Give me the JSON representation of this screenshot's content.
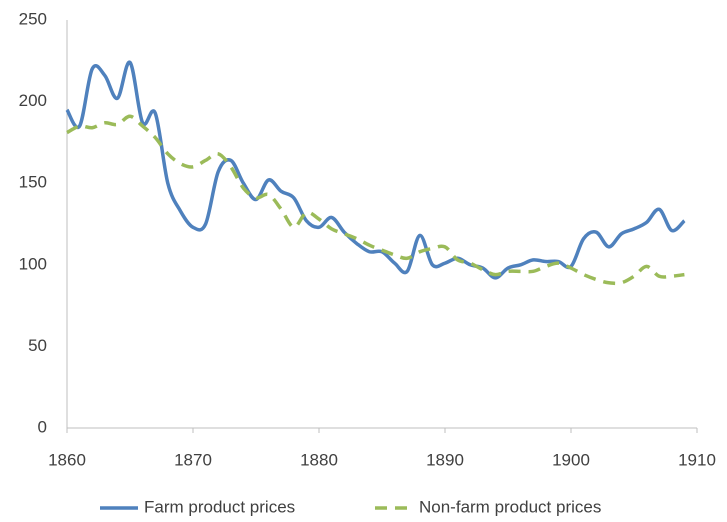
{
  "chart_data": {
    "type": "line",
    "x": [
      1860,
      1861,
      1862,
      1863,
      1864,
      1865,
      1866,
      1867,
      1868,
      1869,
      1870,
      1871,
      1872,
      1873,
      1874,
      1875,
      1876,
      1877,
      1878,
      1879,
      1880,
      1881,
      1882,
      1883,
      1884,
      1885,
      1886,
      1887,
      1888,
      1889,
      1890,
      1891,
      1892,
      1893,
      1894,
      1895,
      1896,
      1897,
      1898,
      1899,
      1900,
      1901,
      1902,
      1903,
      1904,
      1905,
      1906,
      1907,
      1908,
      1909
    ],
    "series": [
      {
        "name": "Farm product prices",
        "color": "#4f81bd",
        "dash": false,
        "values": [
          195,
          185,
          220,
          216,
          202,
          224,
          187,
          193,
          150,
          133,
          123,
          125,
          157,
          164,
          150,
          140,
          152,
          145,
          141,
          127,
          123,
          129,
          120,
          113,
          108,
          108,
          101,
          96,
          118,
          100,
          101,
          104,
          100,
          98,
          92,
          98,
          100,
          103,
          102,
          102,
          99,
          116,
          120,
          111,
          119,
          122,
          126,
          134,
          121,
          127
        ]
      },
      {
        "name": "Non-farm product prices",
        "color": "#9bbb59",
        "dash": true,
        "values": [
          181,
          185,
          184,
          187,
          186,
          191,
          185,
          178,
          168,
          162,
          160,
          164,
          168,
          160,
          147,
          141,
          143,
          134,
          123,
          132,
          128,
          122,
          119,
          116,
          112,
          109,
          106,
          104,
          108,
          110,
          111,
          103,
          101,
          97,
          94,
          96,
          96,
          96,
          99,
          101,
          98,
          94,
          91,
          89,
          89,
          93,
          99,
          93,
          93,
          94
        ]
      }
    ],
    "xlim": [
      1860,
      1910
    ],
    "xticks": [
      1860,
      1870,
      1880,
      1890,
      1900,
      1910
    ],
    "ylim": [
      0,
      250
    ],
    "yticks": [
      0,
      50,
      100,
      150,
      200,
      250
    ],
    "grid": false,
    "legend": "bottom"
  }
}
